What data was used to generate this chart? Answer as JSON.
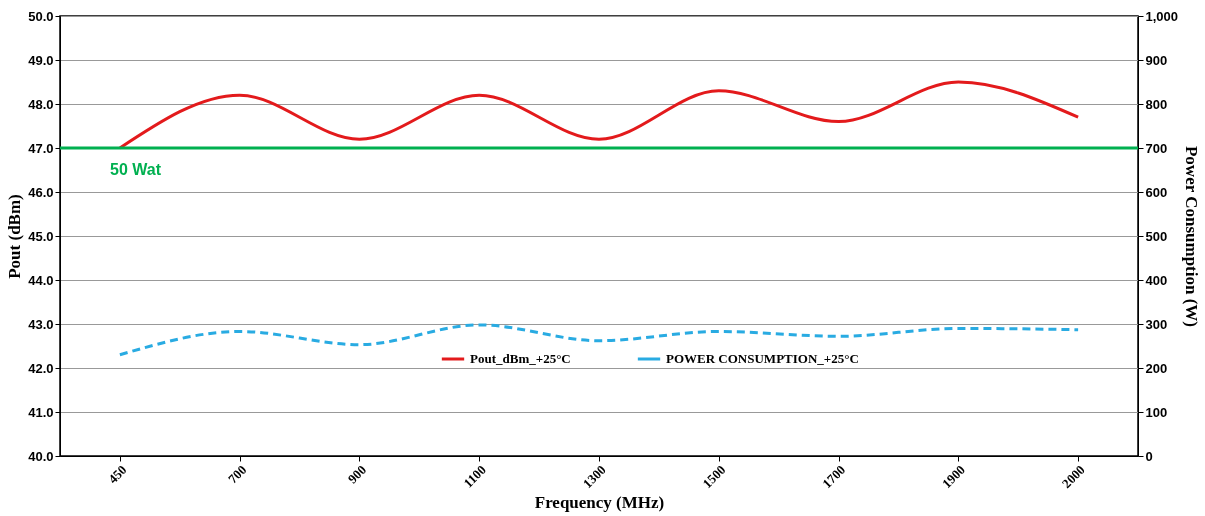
{
  "chart_data": {
    "type": "line",
    "xlabel": "Frequency (MHz)",
    "ylabel": "Pout (dBm)",
    "y2label": "Power Consumption (W)",
    "categories": [
      "450",
      "700",
      "900",
      "1100",
      "1300",
      "1500",
      "1700",
      "1900",
      "2000"
    ],
    "series": [
      {
        "name": "Pout_dBm_+25°C",
        "color": "#e31a1c",
        "line_style": "solid",
        "values": [
          47.0,
          48.2,
          47.2,
          48.2,
          47.2,
          48.3,
          47.6,
          48.5,
          47.7
        ]
      },
      {
        "name": "POWER CONSUMPTION_+25°C",
        "color": "#29abe2",
        "line_style": "dashed",
        "axis": "y2",
        "values": [
          230,
          283,
          253,
          298,
          262,
          283,
          272,
          290,
          287
        ]
      }
    ],
    "ylim": [
      40,
      50
    ],
    "yticks": [
      {
        "value": 40,
        "label": "40.0"
      },
      {
        "value": 41,
        "label": "41.0"
      },
      {
        "value": 42,
        "label": "42.0"
      },
      {
        "value": 43,
        "label": "43.0"
      },
      {
        "value": 44,
        "label": "44.0"
      },
      {
        "value": 45,
        "label": "45.0"
      },
      {
        "value": 46,
        "label": "46.0"
      },
      {
        "value": 47,
        "label": "47.0"
      },
      {
        "value": 48,
        "label": "48.0"
      },
      {
        "value": 49,
        "label": "49.0"
      },
      {
        "value": 50,
        "label": "50.0"
      }
    ],
    "y2lim": [
      0,
      1000
    ],
    "y2ticks": [
      0,
      100,
      200,
      300,
      400,
      500,
      600,
      700,
      800,
      900,
      {
        "value": 1000,
        "label": "1,000"
      }
    ],
    "ref_lines": [
      {
        "axis": "y",
        "value": 47,
        "label": "50 Wat",
        "color": "#00b050"
      }
    ],
    "grid": "y",
    "legend": "bottom",
    "marker": "none"
  }
}
